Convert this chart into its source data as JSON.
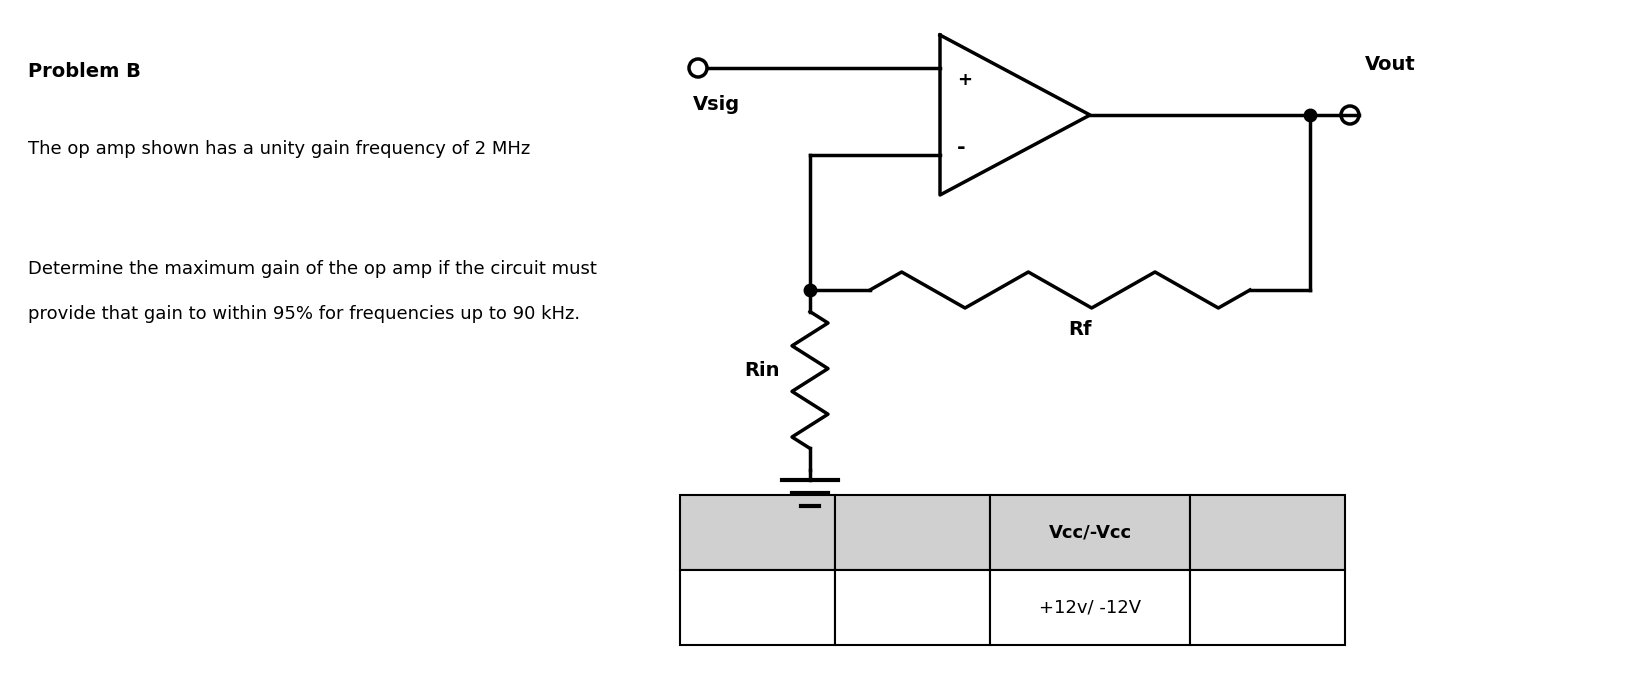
{
  "title": "Problem B",
  "line1": "The op amp shown has a unity gain frequency of 2 MHz",
  "line2": "Determine the maximum gain of the op amp if the circuit must",
  "line3": "provide that gain to within 95% for frequencies up to 90 kHz.",
  "vsig_label": "Vsig",
  "vout_label": "Vout",
  "rin_label": "Rin",
  "rf_label": "Rf",
  "plus_label": "+",
  "minus_label": "-",
  "table_header": "Vcc/-Vcc",
  "table_value": "+12v/ -12V",
  "bg_color": "#ffffff",
  "text_color": "#000000",
  "circuit_color": "#000000",
  "table_header_bg": "#d0d0d0",
  "table_value_bg": "#ffffff",
  "table_border": "#000000",
  "circuit_lw": 2.5
}
